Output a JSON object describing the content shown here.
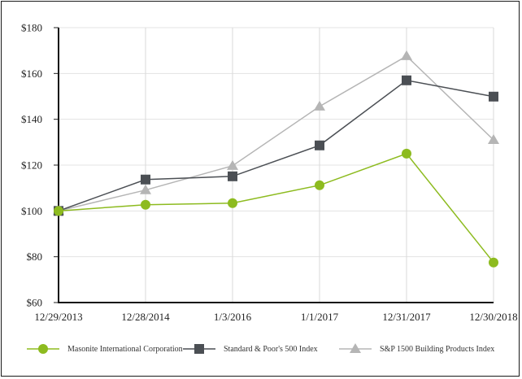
{
  "chart_data": {
    "type": "line",
    "title": "",
    "xlabel": "",
    "ylabel": "",
    "categories": [
      "12/29/2013",
      "12/28/2014",
      "1/3/2016",
      "1/1/2017",
      "12/31/2017",
      "12/30/2018"
    ],
    "y_ticks": [
      "$60",
      "$80",
      "$100",
      "$120",
      "$140",
      "$160",
      "$180"
    ],
    "ylim": [
      60,
      180
    ],
    "grid": true,
    "legend_position": "bottom",
    "series": [
      {
        "name": "Masonite International Corporation",
        "marker": "circle",
        "color": "#8dbb1f",
        "values": [
          100,
          102.7,
          103.4,
          111.2,
          125.0,
          77.5
        ]
      },
      {
        "name": "Standard & Poor's 500 Index",
        "marker": "square",
        "color": "#4b4f54",
        "values": [
          100,
          113.7,
          115.1,
          128.6,
          157.0,
          149.9
        ]
      },
      {
        "name": "S&P 1500 Building Products Index",
        "marker": "triangle",
        "color": "#b5b5b5",
        "values": [
          100,
          109.1,
          119.7,
          145.6,
          167.6,
          131.0
        ]
      }
    ]
  },
  "legend": {
    "items": [
      {
        "label": "Masonite International Corporation"
      },
      {
        "label": "Standard & Poor's 500 Index"
      },
      {
        "label": "S&P 1500 Building Products Index"
      }
    ]
  }
}
